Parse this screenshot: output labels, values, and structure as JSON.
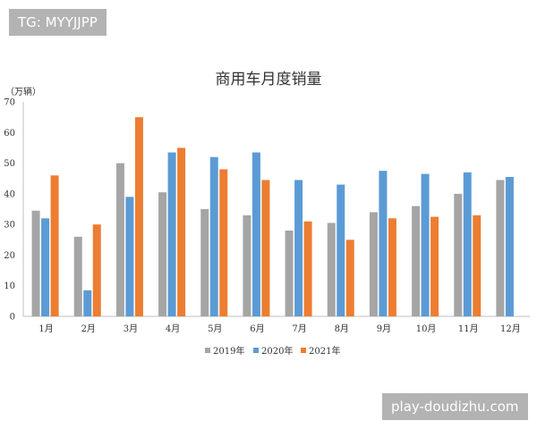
{
  "watermarks": {
    "top_left": "TG: MYYJJPP",
    "bottom_right": "play-doudizhu.com"
  },
  "colors": {
    "series": [
      "#a5a5a5",
      "#5b9bd5",
      "#ed7d31"
    ],
    "axis": "#bfbfbf",
    "badge": "#b3b3b3"
  },
  "chart_data": {
    "type": "bar",
    "title": "商用车月度销量",
    "ylabel": "（万辆）",
    "xlabel": "",
    "ylim": [
      0,
      70
    ],
    "yticks": [
      0,
      10,
      20,
      30,
      40,
      50,
      60,
      70
    ],
    "grid": false,
    "legend_position": "bottom",
    "categories": [
      "1月",
      "2月",
      "3月",
      "4月",
      "5月",
      "6月",
      "7月",
      "8月",
      "9月",
      "10月",
      "11月",
      "12月"
    ],
    "series": [
      {
        "name": "2019年",
        "values": [
          34.5,
          26,
          50,
          40.5,
          35,
          33,
          28,
          30.5,
          34,
          36,
          40,
          44.5
        ]
      },
      {
        "name": "2020年",
        "values": [
          32,
          8.5,
          39,
          53.5,
          52,
          53.5,
          44.5,
          43,
          47.5,
          46.5,
          47,
          45.5
        ]
      },
      {
        "name": "2021年",
        "values": [
          46,
          30,
          65,
          55,
          48,
          44.5,
          31,
          25,
          32,
          32.5,
          33,
          null
        ]
      }
    ]
  }
}
